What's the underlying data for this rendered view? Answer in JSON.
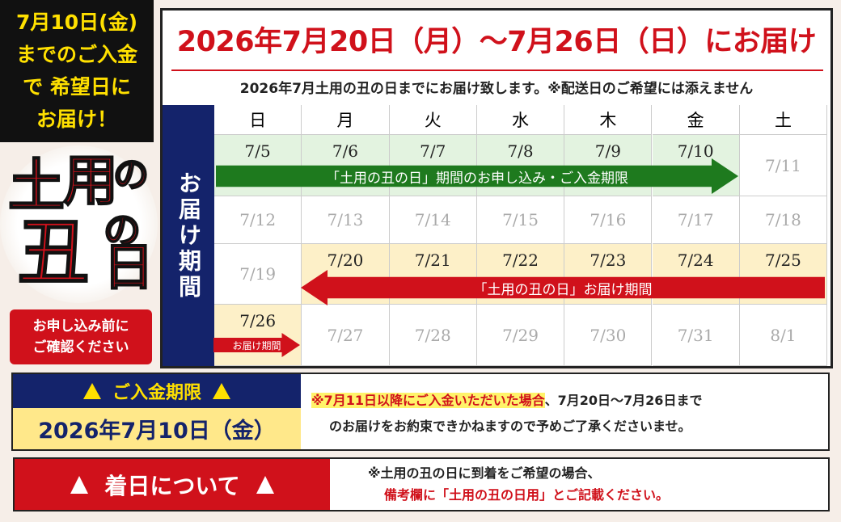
{
  "notice": {
    "lines": [
      "7月10日(金)",
      "までのご入金",
      "で 希望日に",
      "お届け！"
    ]
  },
  "logo": {
    "chars": [
      "土",
      "用",
      "の",
      "丑",
      "の",
      "日"
    ]
  },
  "confirm": {
    "lines": [
      "お申し込み前に",
      "ご確認ください"
    ]
  },
  "header": {
    "title": "2026年7月20日（月）～7月26日（日）にお届け",
    "subtitle": "2026年7月土用の丑の日までにお届け致します。※配送日のご希望には添えません"
  },
  "calendar": {
    "side_label": "お届け期間",
    "weekdays": [
      "日",
      "月",
      "火",
      "水",
      "木",
      "金",
      "土"
    ],
    "weeks": [
      [
        "7/5",
        "7/6",
        "7/7",
        "7/8",
        "7/9",
        "7/10",
        "7/11"
      ],
      [
        "7/12",
        "7/13",
        "7/14",
        "7/15",
        "7/16",
        "7/17",
        "7/18"
      ],
      [
        "7/19",
        "7/20",
        "7/21",
        "7/22",
        "7/23",
        "7/24",
        "7/25"
      ],
      [
        "7/26",
        "7/27",
        "7/28",
        "7/29",
        "7/30",
        "7/31",
        "8/1"
      ]
    ],
    "order_period_label": "「土用の丑の日」期間のお申し込み・ご入金期限",
    "delivery_period_label": "「土用の丑の日」お届け期間",
    "delivery_period_short": "お届け期間"
  },
  "deadline": {
    "heading": "ご入金期限",
    "date": "2026年7月10日（金）",
    "note_highlight": "※7月11日以降にご入金いただいた場合",
    "note_rest": "、7月20日～7月26日まで",
    "note_line2": "のお届けをお約束できかねますので予めご了承くださいませ。"
  },
  "arrival": {
    "heading": "着日について",
    "lines": [
      "※土用の丑の日に到着をご希望の場合、",
      "備考欄に「土用の丑の日用」とご記載ください。"
    ]
  }
}
